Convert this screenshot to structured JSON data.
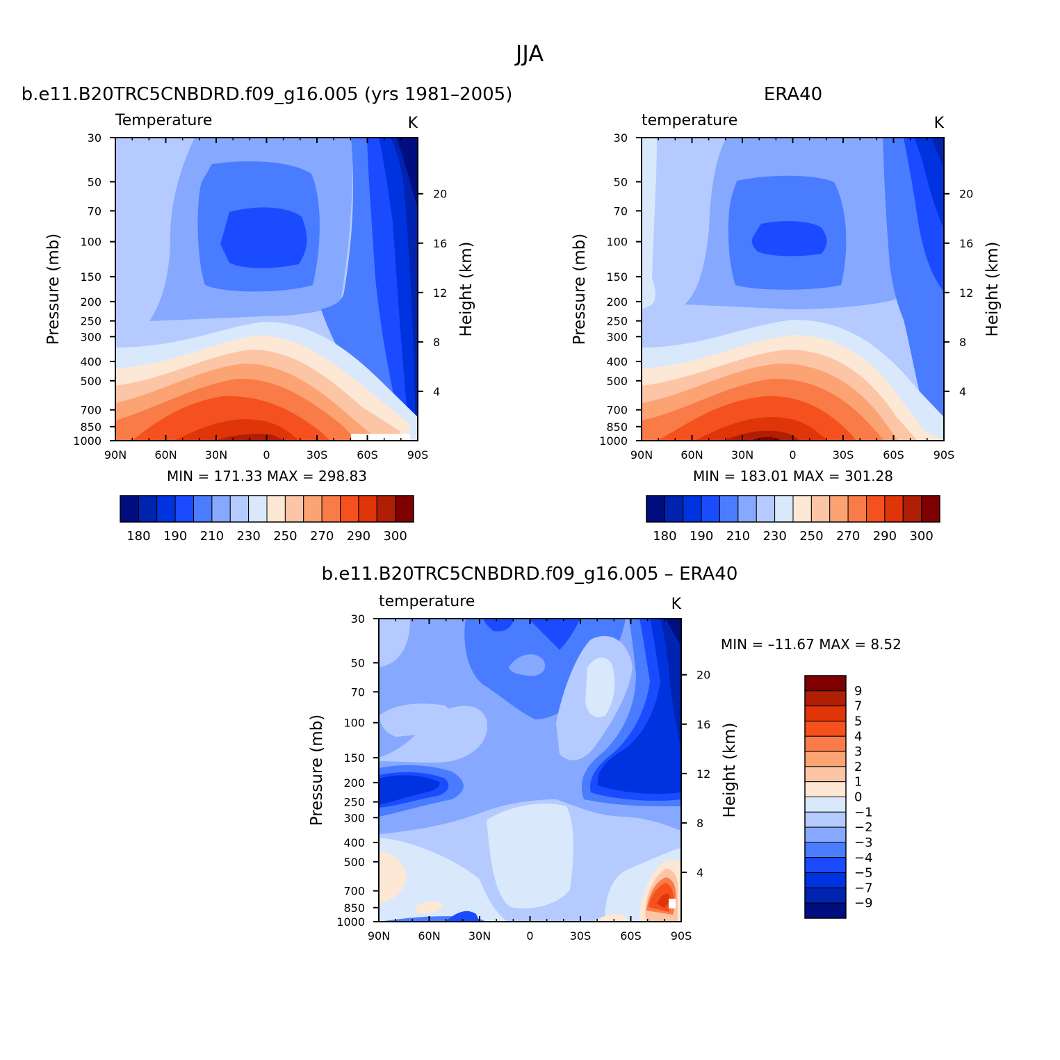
{
  "main_title": "JJA",
  "chart_data": [
    {
      "type": "heatmap",
      "id": "model",
      "title": "b.e11.B20TRC5CNBDRD.f09_g16.005 (yrs 1981–2005)",
      "variable": "Temperature",
      "units": "K",
      "xlabel": "",
      "ylabel": "Pressure (mb)",
      "ylabel_right": "Height (km)",
      "x_tick_labels": [
        "90N",
        "60N",
        "30N",
        "0",
        "30S",
        "60S",
        "90S"
      ],
      "xlim": [
        "90N",
        "90S"
      ],
      "y_ticks": [
        30,
        50,
        70,
        100,
        150,
        200,
        250,
        300,
        400,
        500,
        700,
        850,
        1000
      ],
      "height_ticks": [
        4,
        8,
        12,
        16,
        20
      ],
      "ylim": [
        1000,
        30
      ],
      "y_scale": "log",
      "stats": "MIN = 171.33   MAX = 298.83",
      "min": 171.33,
      "max": 298.83,
      "colorbar": {
        "orientation": "horizontal",
        "labels": [
          "180",
          "190",
          "210",
          "230",
          "250",
          "270",
          "290",
          "300"
        ],
        "colors": [
          "#000e7f",
          "#0023b0",
          "#0033e0",
          "#1a4bff",
          "#4a7cff",
          "#86a9ff",
          "#b5cbff",
          "#d9e9fb",
          "#fde8d6",
          "#fcc5a6",
          "#fca374",
          "#f97c48",
          "#f4511e",
          "#e03409",
          "#b01e06",
          "#7f0000"
        ]
      }
    },
    {
      "type": "heatmap",
      "id": "obs",
      "title": "ERA40",
      "variable": "temperature",
      "units": "K",
      "xlabel": "",
      "ylabel": "Pressure (mb)",
      "ylabel_right": "Height (km)",
      "x_tick_labels": [
        "90N",
        "60N",
        "30N",
        "0",
        "30S",
        "60S",
        "90S"
      ],
      "xlim": [
        "90N",
        "90S"
      ],
      "y_ticks": [
        30,
        50,
        70,
        100,
        150,
        200,
        250,
        300,
        400,
        500,
        700,
        850,
        1000
      ],
      "height_ticks": [
        4,
        8,
        12,
        16,
        20
      ],
      "ylim": [
        1000,
        30
      ],
      "y_scale": "log",
      "stats": "MIN = 183.01   MAX = 301.28",
      "min": 183.01,
      "max": 301.28,
      "colorbar": {
        "orientation": "horizontal",
        "labels": [
          "180",
          "190",
          "210",
          "230",
          "250",
          "270",
          "290",
          "300"
        ],
        "colors": [
          "#000e7f",
          "#0023b0",
          "#0033e0",
          "#1a4bff",
          "#4a7cff",
          "#86a9ff",
          "#b5cbff",
          "#d9e9fb",
          "#fde8d6",
          "#fcc5a6",
          "#fca374",
          "#f97c48",
          "#f4511e",
          "#e03409",
          "#b01e06",
          "#7f0000"
        ]
      }
    },
    {
      "type": "heatmap",
      "id": "diff",
      "title": "b.e11.B20TRC5CNBDRD.f09_g16.005 – ERA40",
      "variable": "temperature",
      "units": "K",
      "xlabel": "",
      "ylabel": "Pressure (mb)",
      "ylabel_right": "Height (km)",
      "x_tick_labels": [
        "90N",
        "60N",
        "30N",
        "0",
        "30S",
        "60S",
        "90S"
      ],
      "xlim": [
        "90N",
        "90S"
      ],
      "y_ticks": [
        30,
        50,
        70,
        100,
        150,
        200,
        250,
        300,
        400,
        500,
        700,
        850,
        1000
      ],
      "height_ticks": [
        4,
        8,
        12,
        16,
        20
      ],
      "ylim": [
        1000,
        30
      ],
      "y_scale": "log",
      "stats": "MIN = –11.67   MAX =    8.52",
      "min": -11.67,
      "max": 8.52,
      "colorbar": {
        "orientation": "vertical",
        "labels": [
          "9",
          "7",
          "5",
          "4",
          "3",
          "2",
          "1",
          "0",
          "−1",
          "−2",
          "−3",
          "−4",
          "−5",
          "−7",
          "−9"
        ],
        "colors": [
          "#7f0000",
          "#b01e06",
          "#e03409",
          "#f4511e",
          "#f97c48",
          "#fca374",
          "#fcc5a6",
          "#fde8d6",
          "#d9e9fb",
          "#b5cbff",
          "#86a9ff",
          "#4a7cff",
          "#1a4bff",
          "#0033e0",
          "#0023b0",
          "#000e7f"
        ]
      }
    }
  ]
}
